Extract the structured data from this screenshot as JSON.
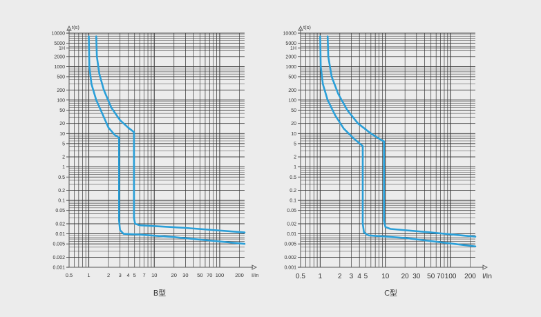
{
  "colors": {
    "background": "#ececec",
    "grid": "#3a3a3a",
    "axis": "#555555",
    "curve": "#2a9fd8"
  },
  "chart_data": [
    {
      "type": "line",
      "caption": "B型",
      "ylabel": "t(s)",
      "xlabel": "I/In",
      "xscale": "log",
      "yscale": "log",
      "xlim": [
        0.5,
        240
      ],
      "ylim": [
        0.001,
        10000
      ],
      "grid": true,
      "x_ticks": [
        {
          "v": 0.5,
          "label": "0.5"
        },
        {
          "v": 1,
          "label": "1"
        },
        {
          "v": 2,
          "label": "2"
        },
        {
          "v": 3,
          "label": "3"
        },
        {
          "v": 4,
          "label": "4"
        },
        {
          "v": 5,
          "label": "5"
        },
        {
          "v": 7,
          "label": "7"
        },
        {
          "v": 10,
          "label": "10"
        },
        {
          "v": 20,
          "label": "20"
        },
        {
          "v": 30,
          "label": "30"
        },
        {
          "v": 50,
          "label": "50"
        },
        {
          "v": 70,
          "label": "70"
        },
        {
          "v": 100,
          "label": "100"
        },
        {
          "v": 200,
          "label": "200"
        }
      ],
      "y_ticks": [
        {
          "v": 10000,
          "label": "10000"
        },
        {
          "v": 5000,
          "label": "5000"
        },
        {
          "v": 3600,
          "label": "1H"
        },
        {
          "v": 2000,
          "label": "2000"
        },
        {
          "v": 1000,
          "label": "1000"
        },
        {
          "v": 500,
          "label": "500"
        },
        {
          "v": 200,
          "label": "200"
        },
        {
          "v": 100,
          "label": "100"
        },
        {
          "v": 50,
          "label": "50"
        },
        {
          "v": 20,
          "label": "20"
        },
        {
          "v": 10,
          "label": "10"
        },
        {
          "v": 5,
          "label": "5"
        },
        {
          "v": 2,
          "label": "2"
        },
        {
          "v": 1,
          "label": "1"
        },
        {
          "v": 0.5,
          "label": "0.5"
        },
        {
          "v": 0.2,
          "label": "0.2"
        },
        {
          "v": 0.1,
          "label": "0.1"
        },
        {
          "v": 0.05,
          "label": "0.05"
        },
        {
          "v": 0.02,
          "label": "0.02"
        },
        {
          "v": 0.01,
          "label": "0.01"
        },
        {
          "v": 0.005,
          "label": "0.005"
        },
        {
          "v": 0.002,
          "label": "0.002"
        },
        {
          "v": 0.001,
          "label": "0.001"
        }
      ],
      "series": [
        {
          "points": [
            [
              1.0,
              8000
            ],
            [
              1.02,
              1000
            ],
            [
              1.1,
              300
            ],
            [
              1.3,
              100
            ],
            [
              1.6,
              40
            ],
            [
              2.0,
              15
            ],
            [
              2.5,
              9
            ],
            [
              2.9,
              7.5
            ],
            [
              2.9,
              0.025
            ],
            [
              3.0,
              0.013
            ],
            [
              3.4,
              0.01
            ],
            [
              6,
              0.0095
            ],
            [
              20,
              0.008
            ],
            [
              240,
              0.005
            ]
          ]
        },
        {
          "points": [
            [
              1.3,
              8000
            ],
            [
              1.33,
              2000
            ],
            [
              1.45,
              600
            ],
            [
              1.7,
              200
            ],
            [
              2.2,
              60
            ],
            [
              3.0,
              25
            ],
            [
              4.0,
              15
            ],
            [
              4.9,
              11
            ],
            [
              4.9,
              0.03
            ],
            [
              5.1,
              0.02
            ],
            [
              6,
              0.018
            ],
            [
              30,
              0.015
            ],
            [
              240,
              0.011
            ]
          ]
        }
      ]
    },
    {
      "type": "line",
      "caption": "C型",
      "ylabel": "t(s)",
      "xlabel": "I/In",
      "xscale": "log",
      "yscale": "log",
      "xlim": [
        0.5,
        240
      ],
      "ylim": [
        0.001,
        10000
      ],
      "grid": true,
      "x_ticks": [
        {
          "v": 0.5,
          "label": "0.5"
        },
        {
          "v": 1,
          "label": "1"
        },
        {
          "v": 2,
          "label": "2"
        },
        {
          "v": 3,
          "label": "3"
        },
        {
          "v": 4,
          "label": "4"
        },
        {
          "v": 5,
          "label": "5"
        },
        {
          "v": 10,
          "label": "10"
        },
        {
          "v": 20,
          "label": "20"
        },
        {
          "v": 30,
          "label": "30"
        },
        {
          "v": 50,
          "label": "50"
        },
        {
          "v": 70,
          "label": "70"
        },
        {
          "v": 100,
          "label": "100"
        },
        {
          "v": 200,
          "label": "200"
        }
      ],
      "y_ticks": [
        {
          "v": 10000,
          "label": "10000"
        },
        {
          "v": 5000,
          "label": "5000"
        },
        {
          "v": 3600,
          "label": "1H"
        },
        {
          "v": 2000,
          "label": "2000"
        },
        {
          "v": 1000,
          "label": "1000"
        },
        {
          "v": 500,
          "label": "500"
        },
        {
          "v": 200,
          "label": "200"
        },
        {
          "v": 100,
          "label": "100"
        },
        {
          "v": 50,
          "label": "50"
        },
        {
          "v": 20,
          "label": "20"
        },
        {
          "v": 10,
          "label": "10"
        },
        {
          "v": 5,
          "label": "5"
        },
        {
          "v": 2,
          "label": "2"
        },
        {
          "v": 1,
          "label": "1"
        },
        {
          "v": 0.5,
          "label": "0.5"
        },
        {
          "v": 0.2,
          "label": "0.2"
        },
        {
          "v": 0.1,
          "label": "0.1"
        },
        {
          "v": 0.05,
          "label": "0.05"
        },
        {
          "v": 0.02,
          "label": "0.02"
        },
        {
          "v": 0.01,
          "label": "0.01"
        },
        {
          "v": 0.005,
          "label": "0.005"
        },
        {
          "v": 0.002,
          "label": "0.002"
        },
        {
          "v": 0.001,
          "label": "0.001"
        }
      ],
      "series": [
        {
          "points": [
            [
              1.0,
              8000
            ],
            [
              1.02,
              1000
            ],
            [
              1.1,
              300
            ],
            [
              1.3,
              100
            ],
            [
              1.7,
              35
            ],
            [
              2.3,
              14
            ],
            [
              3.3,
              7
            ],
            [
              4.5,
              4.2
            ],
            [
              4.5,
              0.02
            ],
            [
              4.7,
              0.011
            ],
            [
              5.5,
              0.009
            ],
            [
              20,
              0.0075
            ],
            [
              240,
              0.0042
            ]
          ]
        },
        {
          "points": [
            [
              1.3,
              8000
            ],
            [
              1.33,
              2000
            ],
            [
              1.5,
              500
            ],
            [
              1.9,
              150
            ],
            [
              2.6,
              50
            ],
            [
              3.8,
              20
            ],
            [
              6,
              10
            ],
            [
              8.5,
              6.5
            ],
            [
              9.5,
              5.8
            ],
            [
              9.5,
              0.025
            ],
            [
              10,
              0.016
            ],
            [
              12,
              0.014
            ],
            [
              50,
              0.011
            ],
            [
              240,
              0.0082
            ]
          ]
        }
      ]
    }
  ]
}
